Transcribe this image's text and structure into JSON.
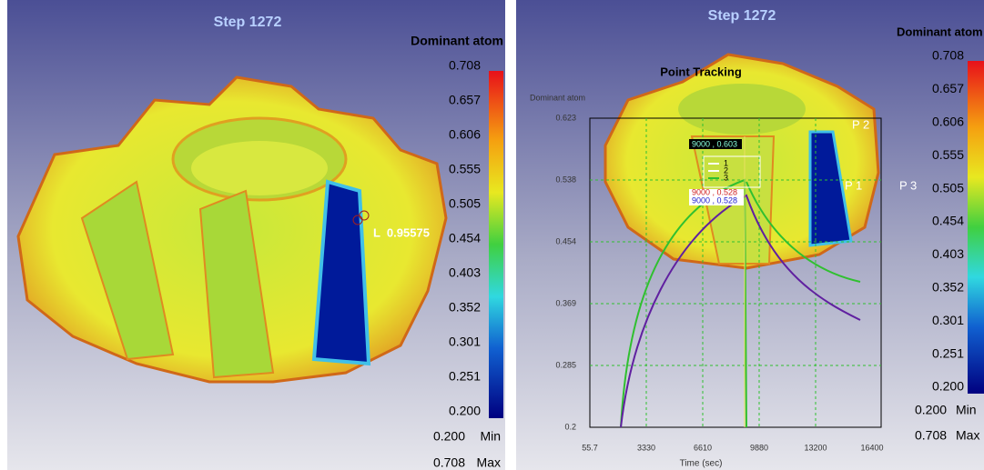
{
  "left_view": {
    "title": "Step 1272",
    "legend_title": "Dominant atom",
    "scale_labels": [
      "0.708",
      "0.657",
      "0.606",
      "0.555",
      "0.505",
      "0.454",
      "0.403",
      "0.352",
      "0.301",
      "0.251",
      "0.200"
    ],
    "min_value": "0.200",
    "min_label": "Min",
    "max_value": "0.708",
    "max_label": "Max",
    "probe_label": "L  0.95575"
  },
  "right_view": {
    "title": "Step 1272",
    "legend_title": "Dominant atom",
    "scale_labels": [
      "0.708",
      "0.657",
      "0.606",
      "0.555",
      "0.505",
      "0.454",
      "0.403",
      "0.352",
      "0.301",
      "0.251",
      "0.200"
    ],
    "min_value": "0.200",
    "min_label": "Min",
    "max_value": "0.708",
    "max_label": "Max",
    "points": [
      "P 1",
      "P 2",
      "P 3"
    ],
    "tracking_plot": {
      "title": "Point Tracking",
      "y_label": "Dominant atom",
      "x_label": "Time (sec)",
      "yticks": [
        "0.623",
        "0.538",
        "0.454",
        "0.369",
        "0.285",
        "0.2"
      ],
      "xticks": [
        "55.7",
        "3330",
        "6610",
        "9880",
        "13200",
        "16400"
      ],
      "legend": [
        "1",
        "2",
        "3"
      ],
      "readouts": [
        "9000 , 0.603",
        "9000 , 0.528",
        "9000 , 0.528"
      ]
    }
  }
}
